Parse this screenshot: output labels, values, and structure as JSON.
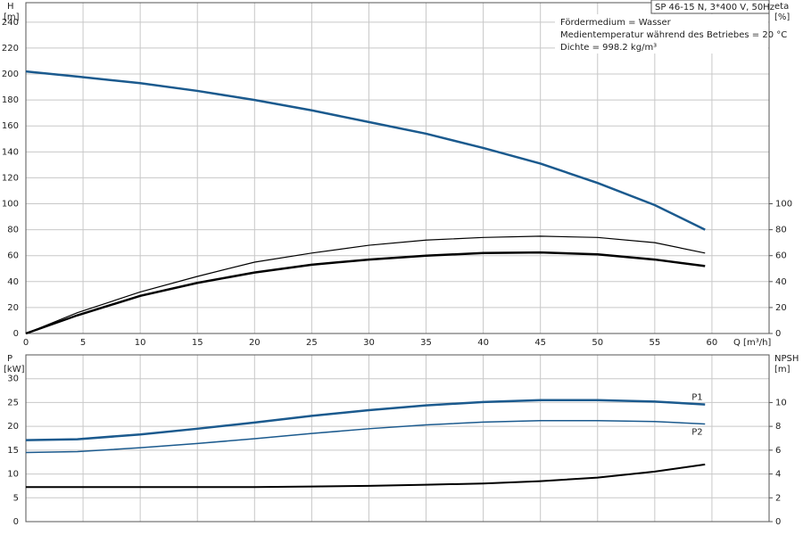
{
  "chart_data": [
    {
      "type": "line",
      "title": "SP 46-15 N, 3*400 V, 50Hz",
      "annotations": [
        "Fördermedium = Wasser",
        "Medientemperatur während des Betriebes = 20 °C",
        "Dichte = 998.2 kg/m³"
      ],
      "ylabel": "H",
      "yunit": "[m]",
      "y2label": "eta",
      "y2unit": "[%]",
      "xlabel": "Q [m³/h]",
      "x": [
        0,
        4.5,
        10,
        15,
        20,
        25,
        30,
        35,
        40,
        45,
        50,
        55,
        59.4
      ],
      "xlim": [
        0,
        65
      ],
      "xticks": [
        0,
        5,
        10,
        15,
        20,
        25,
        30,
        35,
        40,
        45,
        50,
        55,
        60
      ],
      "xtick_labels": true,
      "ylim": [
        0,
        255
      ],
      "yticks": [
        0,
        20,
        40,
        60,
        80,
        100,
        120,
        140,
        160,
        180,
        200,
        220,
        240
      ],
      "y2lim": [
        0,
        255
      ],
      "y2ticks": [
        0,
        20,
        40,
        60,
        80,
        100
      ],
      "grid": true,
      "series": [
        {
          "color": "#1b5a8e",
          "width": 2.5,
          "values": [
            202,
            198,
            193,
            187,
            180,
            172,
            163,
            154,
            143,
            131,
            116,
            99,
            80
          ]
        },
        {
          "color": "#000000",
          "width": 1.2,
          "axis": "y2",
          "values": [
            0,
            16,
            32,
            44,
            55,
            62,
            68,
            72,
            74,
            75,
            74,
            70,
            62
          ]
        },
        {
          "color": "#000000",
          "width": 2.5,
          "axis": "y2",
          "values": [
            0,
            14,
            29,
            39,
            47,
            53,
            57,
            60,
            62,
            62.5,
            61,
            57,
            52
          ]
        }
      ]
    },
    {
      "type": "line",
      "ylabel": "P",
      "yunit": "[kW]",
      "y2label": "NPSH",
      "y2unit": "[m]",
      "x": [
        0,
        4.5,
        10,
        15,
        20,
        25,
        30,
        35,
        40,
        45,
        50,
        55,
        59.4
      ],
      "xlim": [
        0,
        65
      ],
      "xticks": [
        0,
        5,
        10,
        15,
        20,
        25,
        30,
        35,
        40,
        45,
        50,
        55,
        60
      ],
      "xtick_labels": false,
      "ylim": [
        0,
        35
      ],
      "yticks": [
        0,
        5,
        10,
        15,
        20,
        25,
        30
      ],
      "y2lim": [
        0,
        14
      ],
      "y2ticks": [
        0,
        2,
        4,
        6,
        8,
        10
      ],
      "grid": true,
      "series": [
        {
          "name": "P1",
          "color": "#1b5a8e",
          "width": 2.5,
          "values": [
            17.1,
            17.3,
            18.3,
            19.5,
            20.8,
            22.2,
            23.4,
            24.4,
            25.1,
            25.5,
            25.5,
            25.2,
            24.6
          ]
        },
        {
          "name": "P2",
          "color": "#1b5a8e",
          "width": 1.5,
          "values": [
            14.5,
            14.7,
            15.5,
            16.4,
            17.4,
            18.5,
            19.5,
            20.3,
            20.9,
            21.2,
            21.2,
            21.0,
            20.5
          ]
        },
        {
          "color": "#000000",
          "width": 2,
          "axis": "y2",
          "values": [
            2.9,
            2.9,
            2.9,
            2.9,
            2.9,
            2.95,
            3.0,
            3.1,
            3.2,
            3.4,
            3.7,
            4.2,
            4.8
          ]
        }
      ]
    }
  ]
}
